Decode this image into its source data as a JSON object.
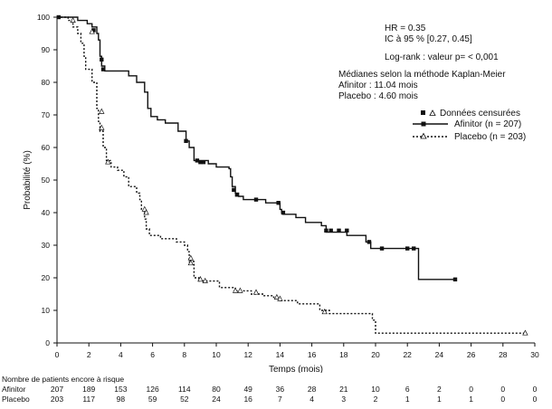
{
  "chart_data": {
    "type": "line",
    "xlabel": "Temps (mois)",
    "ylabel": "Probabilité (%)",
    "xlim": [
      0,
      30
    ],
    "ylim": [
      0,
      100
    ],
    "xticks": [
      0,
      2,
      4,
      6,
      8,
      10,
      12,
      14,
      16,
      18,
      20,
      22,
      24,
      26,
      28,
      30
    ],
    "yticks": [
      0,
      10,
      20,
      30,
      40,
      50,
      60,
      70,
      80,
      90,
      100
    ],
    "grid": false,
    "legend_position": "top-right",
    "annotations": {
      "hr": "HR = 0.35",
      "ci": "IC à 95 % [0.27, 0.45]",
      "logrank": "Log-rank : valeur p= < 0,001",
      "medians_title": "Médianes selon la méthode Kaplan-Meier",
      "median_afinitor": "Afinitor : 11.04 mois",
      "median_placebo": "Placebo : 4.60 mois"
    },
    "legend": {
      "censored_label": "Données censurées",
      "afinitor_label": "Afinitor (n = 207)",
      "placebo_label": "Placebo (n = 203)"
    },
    "series": [
      {
        "name": "Afinitor (n = 207)",
        "line_style": "solid",
        "censor_marker": "square",
        "points": [
          [
            0,
            100
          ],
          [
            1.3,
            99
          ],
          [
            1.9,
            98
          ],
          [
            2.2,
            97
          ],
          [
            2.5,
            95
          ],
          [
            2.6,
            93
          ],
          [
            2.7,
            88
          ],
          [
            2.8,
            85
          ],
          [
            3.0,
            83.5
          ],
          [
            4.5,
            82
          ],
          [
            5.0,
            80
          ],
          [
            5.5,
            77
          ],
          [
            5.7,
            72
          ],
          [
            5.9,
            69.5
          ],
          [
            6.3,
            68.5
          ],
          [
            6.8,
            67.5
          ],
          [
            7.6,
            65
          ],
          [
            8.1,
            62
          ],
          [
            8.3,
            60
          ],
          [
            8.6,
            56
          ],
          [
            9.5,
            55
          ],
          [
            10.0,
            54
          ],
          [
            10.8,
            53.5
          ],
          [
            10.9,
            51
          ],
          [
            11.0,
            48
          ],
          [
            11.2,
            46
          ],
          [
            11.4,
            45
          ],
          [
            11.7,
            44
          ],
          [
            12.5,
            44
          ],
          [
            13.1,
            43
          ],
          [
            13.8,
            43
          ],
          [
            14.0,
            41
          ],
          [
            14.1,
            40
          ],
          [
            14.2,
            39.5
          ],
          [
            15.0,
            38.5
          ],
          [
            15.6,
            37
          ],
          [
            16.6,
            36
          ],
          [
            16.9,
            34
          ],
          [
            18.2,
            33
          ],
          [
            19.4,
            31
          ],
          [
            19.7,
            29
          ],
          [
            20.5,
            29
          ],
          [
            22.7,
            29
          ],
          [
            22.7,
            19.5
          ],
          [
            25.0,
            19.5
          ]
        ],
        "censored": [
          [
            0.1,
            100
          ],
          [
            2.3,
            96
          ],
          [
            2.8,
            87
          ],
          [
            2.9,
            84
          ],
          [
            8.1,
            62
          ],
          [
            8.8,
            56
          ],
          [
            9.0,
            55.5
          ],
          [
            9.2,
            55.5
          ],
          [
            11.1,
            47
          ],
          [
            11.3,
            45.5
          ],
          [
            12.5,
            44
          ],
          [
            13.9,
            43
          ],
          [
            14.2,
            40
          ],
          [
            16.9,
            34.5
          ],
          [
            17.2,
            34.5
          ],
          [
            17.7,
            34.5
          ],
          [
            18.2,
            34.5
          ],
          [
            19.6,
            31
          ],
          [
            20.4,
            29
          ],
          [
            22.0,
            29
          ],
          [
            22.4,
            29
          ],
          [
            25.0,
            19.5
          ]
        ]
      },
      {
        "name": "Placebo (n = 203)",
        "line_style": "dotted",
        "censor_marker": "triangle",
        "points": [
          [
            0,
            100
          ],
          [
            0.7,
            99
          ],
          [
            1.0,
            97
          ],
          [
            1.3,
            95
          ],
          [
            1.5,
            92
          ],
          [
            1.7,
            88
          ],
          [
            1.8,
            84
          ],
          [
            2.2,
            80
          ],
          [
            2.5,
            72
          ],
          [
            2.6,
            68
          ],
          [
            2.7,
            65
          ],
          [
            2.9,
            60
          ],
          [
            3.1,
            56
          ],
          [
            3.4,
            54
          ],
          [
            3.8,
            53
          ],
          [
            4.2,
            51
          ],
          [
            4.5,
            48
          ],
          [
            5.0,
            46
          ],
          [
            5.2,
            44
          ],
          [
            5.3,
            41
          ],
          [
            5.5,
            38
          ],
          [
            5.6,
            35
          ],
          [
            5.8,
            33
          ],
          [
            6.5,
            32
          ],
          [
            7.5,
            31
          ],
          [
            8.0,
            30
          ],
          [
            8.2,
            28
          ],
          [
            8.3,
            25
          ],
          [
            8.6,
            20
          ],
          [
            8.9,
            19
          ],
          [
            9.4,
            19
          ],
          [
            10.2,
            17
          ],
          [
            11.2,
            16
          ],
          [
            12.2,
            15
          ],
          [
            13.0,
            14.5
          ],
          [
            13.6,
            14
          ],
          [
            14.0,
            13
          ],
          [
            15.1,
            12
          ],
          [
            16.5,
            10
          ],
          [
            17.1,
            9
          ],
          [
            19.5,
            9
          ],
          [
            19.8,
            7
          ],
          [
            20.0,
            3
          ],
          [
            29.4,
            3
          ]
        ],
        "censored": [
          [
            1.0,
            99
          ],
          [
            2.2,
            95.5
          ],
          [
            2.8,
            71
          ],
          [
            2.8,
            66
          ],
          [
            3.2,
            55.5
          ],
          [
            5.5,
            41
          ],
          [
            5.6,
            40
          ],
          [
            8.4,
            26
          ],
          [
            8.4,
            24.5
          ],
          [
            9.0,
            19.5
          ],
          [
            9.3,
            19
          ],
          [
            11.2,
            16
          ],
          [
            11.5,
            16
          ],
          [
            12.5,
            15.5
          ],
          [
            13.8,
            14
          ],
          [
            14.0,
            13.5
          ],
          [
            16.8,
            9.5
          ],
          [
            29.4,
            3
          ]
        ]
      }
    ],
    "at_risk": {
      "title": "Nombre de patients encore à risque",
      "times": [
        0,
        2,
        4,
        6,
        8,
        10,
        12,
        14,
        16,
        18,
        20,
        22,
        24,
        26,
        28,
        30
      ],
      "rows": [
        {
          "label": "Afinitor",
          "values": [
            "207",
            "189",
            "153",
            "126",
            "114",
            "80",
            "49",
            "36",
            "28",
            "21",
            "10",
            "6",
            "2",
            "0",
            "0",
            "0"
          ]
        },
        {
          "label": "Placebo",
          "values": [
            "203",
            "117",
            "98",
            "59",
            "52",
            "24",
            "16",
            "7",
            "4",
            "3",
            "2",
            "1",
            "1",
            "1",
            "0",
            "0"
          ]
        }
      ]
    }
  }
}
